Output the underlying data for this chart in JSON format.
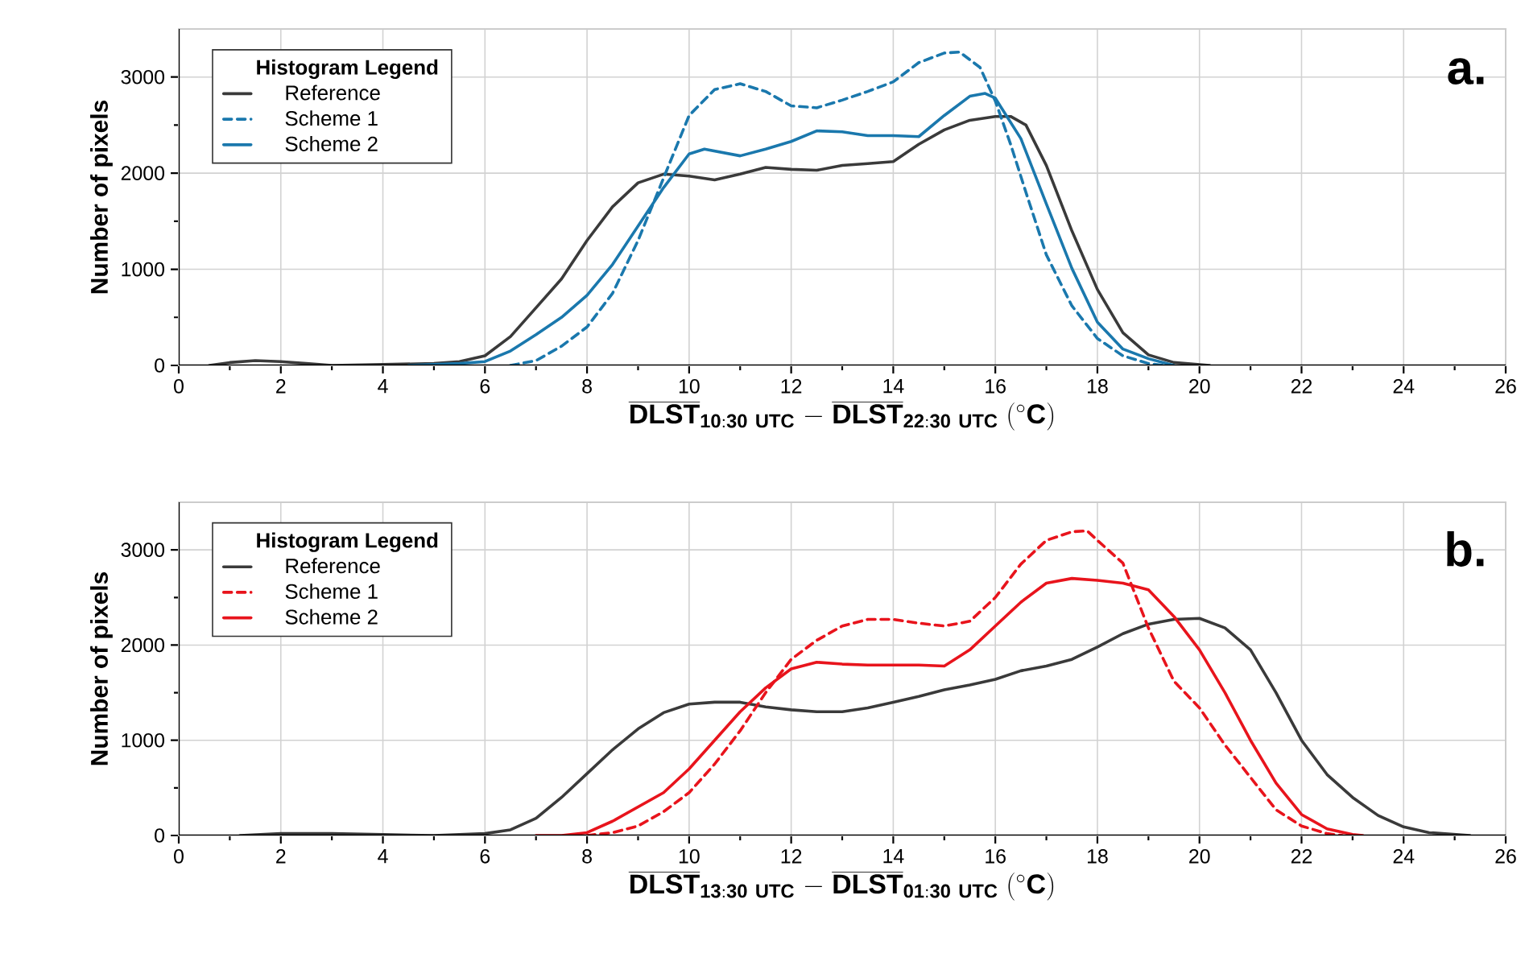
{
  "chart_data": [
    {
      "type": "line",
      "xlabel": "\\overline{\\mathbf{DLST}}_{\\mathbf{10{:}30\\ UTC}}\\ \\mathbf{-}\\ \\overline{\\mathbf{DLST}}_{\\mathbf{22{:}30\\ UTC}}\\ \\mathbf{({}^{\\circ}C)}",
      "ylabel": "Number of pixels",
      "legend_title": "Histogram Legend",
      "annotations": [
        "a."
      ],
      "xlim": [
        0,
        26
      ],
      "xticks": [
        0,
        2,
        4,
        6,
        8,
        10,
        12,
        14,
        16,
        18,
        20,
        22,
        24,
        26
      ],
      "ylim": [
        0,
        3500
      ],
      "yticks": [
        0,
        1000,
        2000,
        3000
      ],
      "grid": true,
      "legend": "top left",
      "series": [
        {
          "name": "Reference",
          "color": "#3a3a3a",
          "line_style": "solid",
          "x": [
            0.6,
            1,
            1.5,
            2,
            2.5,
            3,
            4,
            5,
            5.5,
            6,
            6.5,
            7,
            7.5,
            8,
            8.5,
            9,
            9.5,
            10,
            10.5,
            11,
            11.5,
            12,
            12.5,
            13,
            13.5,
            14,
            14.5,
            15,
            15.5,
            16,
            16.3,
            16.6,
            17,
            17.5,
            18,
            18.5,
            19,
            19.5,
            20.2
          ],
          "values": [
            0,
            30,
            50,
            40,
            20,
            0,
            10,
            20,
            40,
            100,
            300,
            600,
            900,
            1300,
            1650,
            1900,
            1990,
            1970,
            1930,
            1990,
            2060,
            2040,
            2030,
            2080,
            2100,
            2120,
            2300,
            2450,
            2550,
            2590,
            2590,
            2500,
            2080,
            1400,
            790,
            340,
            110,
            30,
            0
          ]
        },
        {
          "name": "Scheme 1",
          "color": "#1a78ad",
          "line_style": "dashed",
          "x": [
            6.5,
            7,
            7.5,
            8,
            8.5,
            9,
            9.5,
            10,
            10.5,
            11,
            11.5,
            12,
            12.5,
            13,
            13.5,
            14,
            14.5,
            15,
            15.3,
            15.7,
            16,
            16.3,
            16.6,
            17,
            17.5,
            18,
            18.5,
            19,
            19.3
          ],
          "values": [
            0,
            50,
            200,
            400,
            750,
            1300,
            1950,
            2600,
            2870,
            2930,
            2850,
            2700,
            2680,
            2760,
            2850,
            2950,
            3150,
            3250,
            3260,
            3100,
            2750,
            2300,
            1800,
            1150,
            620,
            280,
            100,
            20,
            0
          ]
        },
        {
          "name": "Scheme 2",
          "color": "#1a78ad",
          "line_style": "solid",
          "x": [
            4.5,
            5,
            5.5,
            6,
            6.5,
            7,
            7.5,
            8,
            8.5,
            9,
            9.5,
            10,
            10.3,
            11,
            11.5,
            12,
            12.5,
            13,
            13.5,
            14,
            14.5,
            15,
            15.5,
            15.8,
            16,
            16.5,
            17,
            17.5,
            18,
            18.5,
            19,
            19.5
          ],
          "values": [
            0,
            10,
            20,
            40,
            150,
            320,
            500,
            730,
            1050,
            1450,
            1850,
            2200,
            2250,
            2180,
            2250,
            2330,
            2440,
            2430,
            2390,
            2390,
            2380,
            2600,
            2800,
            2830,
            2780,
            2360,
            1680,
            1010,
            450,
            170,
            70,
            0
          ]
        }
      ]
    },
    {
      "type": "line",
      "xlabel": "\\overline{\\mathbf{DLST}}_{\\mathbf{13{:}30\\ UTC}}\\ \\mathbf{-}\\ \\overline{\\mathbf{DLST}}_{\\mathbf{01{:}30\\ UTC}}\\ \\mathbf{({}^{\\circ}C)}",
      "ylabel": "Number of pixels",
      "legend_title": "Histogram Legend",
      "annotations": [
        "b."
      ],
      "xlim": [
        0,
        26
      ],
      "xticks": [
        0,
        2,
        4,
        6,
        8,
        10,
        12,
        14,
        16,
        18,
        20,
        22,
        24,
        26
      ],
      "ylim": [
        0,
        3500
      ],
      "yticks": [
        0,
        1000,
        2000,
        3000
      ],
      "grid": true,
      "legend": "top left",
      "series": [
        {
          "name": "Reference",
          "color": "#3a3a3a",
          "line_style": "solid",
          "x": [
            1.2,
            2,
            3,
            4,
            5,
            6,
            6.5,
            7,
            7.5,
            8,
            8.5,
            9,
            9.5,
            10,
            10.5,
            11,
            11.5,
            12,
            12.5,
            13,
            13.5,
            14,
            14.5,
            15,
            15.5,
            16,
            16.5,
            17,
            17.5,
            18,
            18.5,
            19,
            19.5,
            20,
            20.5,
            21,
            21.5,
            22,
            22.5,
            23,
            23.5,
            24,
            24.5,
            25.3
          ],
          "values": [
            0,
            20,
            20,
            10,
            0,
            20,
            60,
            180,
            400,
            650,
            900,
            1120,
            1290,
            1380,
            1400,
            1400,
            1350,
            1320,
            1300,
            1300,
            1340,
            1400,
            1460,
            1530,
            1580,
            1640,
            1730,
            1780,
            1850,
            1980,
            2120,
            2220,
            2270,
            2280,
            2180,
            1950,
            1500,
            1000,
            640,
            400,
            210,
            90,
            30,
            0
          ]
        },
        {
          "name": "Scheme 1",
          "color": "#e8141c",
          "line_style": "dashed",
          "x": [
            8,
            8.5,
            9,
            9.5,
            10,
            10.5,
            11,
            11.5,
            12,
            12.5,
            13,
            13.5,
            14,
            14.5,
            15,
            15.5,
            16,
            16.5,
            17,
            17.5,
            17.8,
            18,
            18.5,
            19,
            19.5,
            20,
            20.5,
            21,
            21.5,
            22,
            22.5,
            22.8
          ],
          "values": [
            0,
            30,
            100,
            250,
            450,
            750,
            1100,
            1500,
            1850,
            2050,
            2200,
            2270,
            2270,
            2230,
            2200,
            2250,
            2500,
            2850,
            3100,
            3190,
            3200,
            3100,
            2860,
            2180,
            1620,
            1340,
            950,
            610,
            270,
            100,
            20,
            0
          ]
        },
        {
          "name": "Scheme 2",
          "color": "#e8141c",
          "line_style": "solid",
          "x": [
            7,
            7.5,
            8,
            8.5,
            9,
            9.5,
            10,
            10.5,
            11,
            11.5,
            12,
            12.5,
            13,
            13.5,
            14,
            14.5,
            15,
            15.5,
            16,
            16.5,
            17,
            17.5,
            18,
            18.5,
            19,
            19.5,
            20,
            20.5,
            21,
            21.5,
            22,
            22.5,
            23,
            23.2
          ],
          "values": [
            0,
            0,
            30,
            150,
            300,
            450,
            700,
            1000,
            1300,
            1550,
            1750,
            1820,
            1800,
            1790,
            1790,
            1790,
            1780,
            1950,
            2200,
            2450,
            2650,
            2700,
            2680,
            2650,
            2580,
            2300,
            1950,
            1500,
            1000,
            550,
            220,
            70,
            10,
            0
          ]
        }
      ]
    }
  ]
}
